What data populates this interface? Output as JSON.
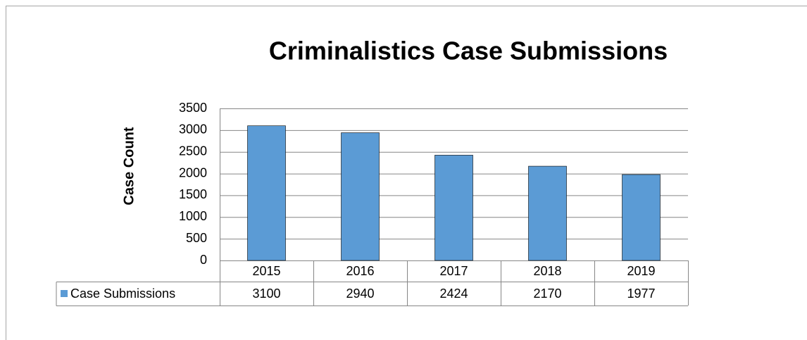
{
  "chart_data": {
    "type": "bar",
    "title": "Criminalistics Case Submissions",
    "y_label": "Case Count",
    "categories": [
      "2015",
      "2016",
      "2017",
      "2018",
      "2019"
    ],
    "series": [
      {
        "name": "Case Submissions",
        "color": "#5b9bd5",
        "values": [
          3100,
          2940,
          2424,
          2170,
          1977
        ]
      }
    ],
    "ylim": [
      0,
      3500
    ],
    "yticks": [
      0,
      500,
      1000,
      1500,
      2000,
      2500,
      3000,
      3500
    ],
    "grid": true,
    "data_table": true
  }
}
